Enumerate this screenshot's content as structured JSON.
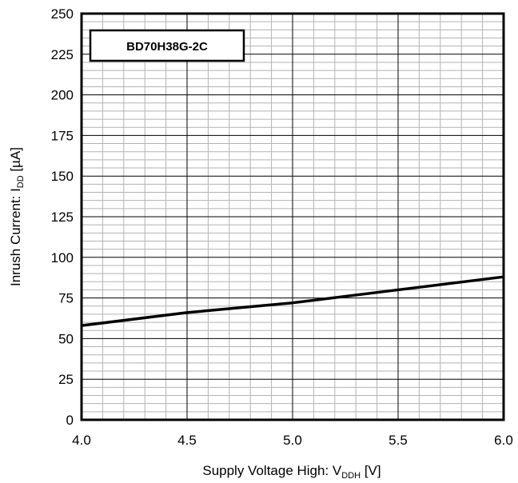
{
  "chart_data": {
    "type": "line",
    "legend_label": "BD70H38G-2C",
    "legend_placement": "top-left",
    "xlabel": {
      "main": "Supply Voltage High: V",
      "sub": "DDH",
      "unit": " [V]"
    },
    "ylabel": {
      "main": "Inrush Current: I",
      "sub": "DD",
      "unit": " [µA]"
    },
    "xlim": [
      4.0,
      6.0
    ],
    "ylim": [
      0,
      250
    ],
    "x_ticks": [
      4.0,
      4.5,
      5.0,
      5.5,
      6.0
    ],
    "x_tick_labels": [
      "4.0",
      "4.5",
      "5.0",
      "5.5",
      "6.0"
    ],
    "y_ticks": [
      0,
      25,
      50,
      75,
      100,
      125,
      150,
      175,
      200,
      225,
      250
    ],
    "y_tick_labels": [
      "0",
      "25",
      "50",
      "75",
      "100",
      "125",
      "150",
      "175",
      "200",
      "225",
      "250"
    ],
    "grid": true,
    "minor_grid": {
      "x_per_major": 5,
      "y_per_major": 5
    },
    "series": [
      {
        "x": [
          4.0,
          4.5,
          5.0,
          5.5,
          6.0
        ],
        "y": [
          58,
          66,
          72,
          80,
          88
        ],
        "color": "#000000"
      }
    ]
  }
}
